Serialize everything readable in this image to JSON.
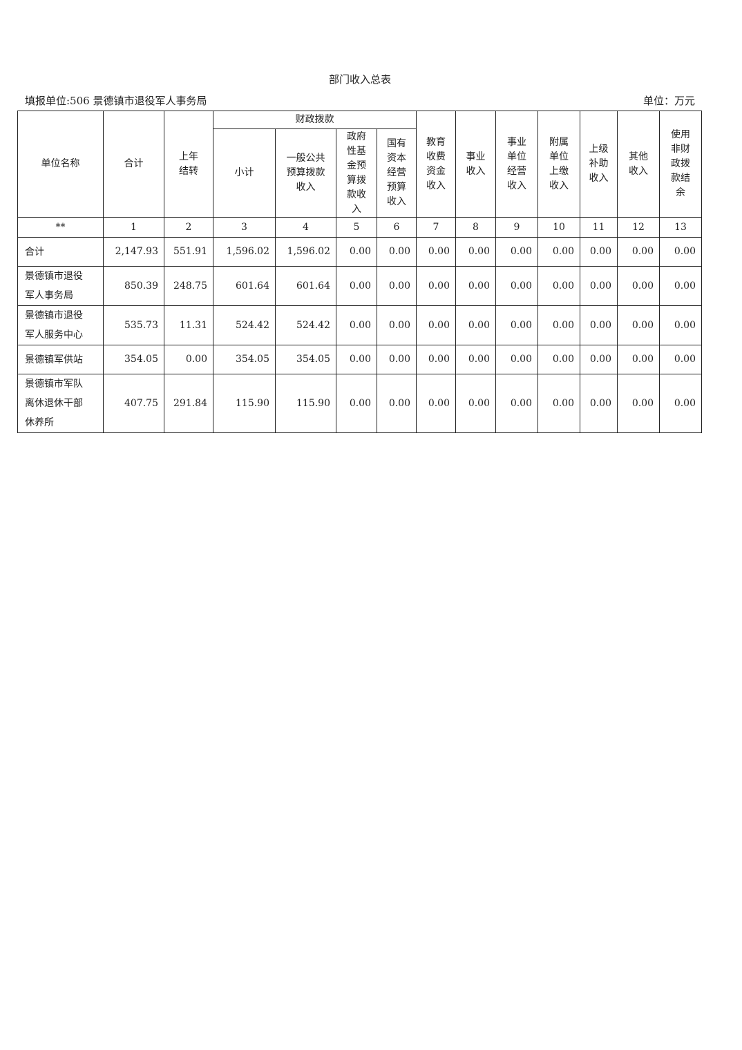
{
  "title": "部门收入总表",
  "fill_unit": "填报单位:506 景德镇市退役军人事务局",
  "unit": "单位：万元",
  "headers": {
    "name": "单位名称",
    "total": "合计",
    "carryover": "上年\n结转",
    "fiscal_group": "财政拨款",
    "subtotal": "小计",
    "general": "一般公共\n预算拨款\n收入",
    "gov_fund": "政府\n性基\n金预\n算拨\n款收\n入",
    "state_capital": "国有\n资本\n经营\n预算\n收入",
    "education": "教育\n收费\n资金\n收入",
    "business": "事业\n收入",
    "operation": "事业\n单位\n经营\n收入",
    "affiliated": "附属\n单位\n上缴\n收入",
    "superior": "上级\n补助\n收入",
    "other": "其他\n收入",
    "nonfiscal": "使用\n非财\n政拨\n款结\n余"
  },
  "index_row": [
    "**",
    "1",
    "2",
    "3",
    "4",
    "5",
    "6",
    "7",
    "8",
    "9",
    "10",
    "11",
    "12",
    "13"
  ],
  "rows": [
    [
      "合计",
      "2,147.93",
      "551.91",
      "1,596.02",
      "1,596.02",
      "0.00",
      "0.00",
      "0.00",
      "0.00",
      "0.00",
      "0.00",
      "0.00",
      "0.00",
      "0.00"
    ],
    [
      "景德镇市退役\n军人事务局",
      "850.39",
      "248.75",
      "601.64",
      "601.64",
      "0.00",
      "0.00",
      "0.00",
      "0.00",
      "0.00",
      "0.00",
      "0.00",
      "0.00",
      "0.00"
    ],
    [
      "景德镇市退役\n军人服务中心",
      "535.73",
      "11.31",
      "524.42",
      "524.42",
      "0.00",
      "0.00",
      "0.00",
      "0.00",
      "0.00",
      "0.00",
      "0.00",
      "0.00",
      "0.00"
    ],
    [
      "景德镇军供站",
      "354.05",
      "0.00",
      "354.05",
      "354.05",
      "0.00",
      "0.00",
      "0.00",
      "0.00",
      "0.00",
      "0.00",
      "0.00",
      "0.00",
      "0.00"
    ],
    [
      "景德镇市军队\n离休退休干部\n休养所",
      "407.75",
      "291.84",
      "115.90",
      "115.90",
      "0.00",
      "0.00",
      "0.00",
      "0.00",
      "0.00",
      "0.00",
      "0.00",
      "0.00",
      "0.00"
    ]
  ]
}
